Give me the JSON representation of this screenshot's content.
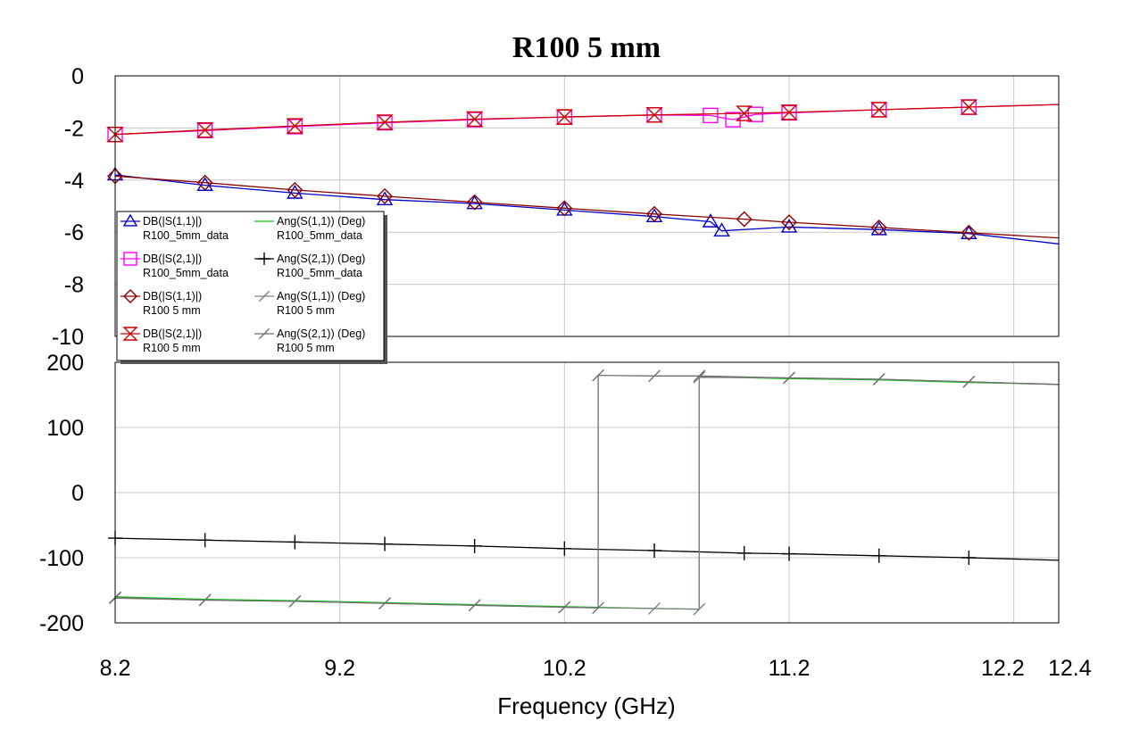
{
  "chart_data": {
    "title": "R100 5 mm",
    "xlabel": "Frequency (GHz)",
    "xlim": [
      8.2,
      12.4
    ],
    "x_ticks": [
      "8.2",
      "9.2",
      "10.2",
      "11.2",
      "12.2",
      "12.4"
    ],
    "panels": [
      {
        "type": "line",
        "ylim": [
          -10,
          0
        ],
        "y_ticks": [
          "0",
          "-2",
          "-4",
          "-6",
          "-8",
          "-10"
        ],
        "grid": true,
        "series": [
          {
            "name": "DB(|S(1,1)|) R100_5mm_data",
            "color": "#0000c8",
            "marker": "triangle",
            "x": [
              8.2,
              8.6,
              9.0,
              9.4,
              9.8,
              10.2,
              10.6,
              10.85,
              10.9,
              11.2,
              11.6,
              12.0,
              12.4
            ],
            "y": [
              -3.8,
              -4.2,
              -4.5,
              -4.75,
              -4.9,
              -5.15,
              -5.4,
              -5.6,
              -5.95,
              -5.8,
              -5.9,
              -6.05,
              -6.45
            ]
          },
          {
            "name": "DB(|S(2,1)|) R100_5mm_data",
            "color": "#ff00ff",
            "marker": "square",
            "x": [
              8.2,
              8.6,
              9.0,
              9.4,
              9.8,
              10.2,
              10.6,
              10.85,
              10.95,
              11.05,
              11.2,
              11.6,
              12.0,
              12.4
            ],
            "y": [
              -2.25,
              -2.1,
              -1.95,
              -1.8,
              -1.68,
              -1.58,
              -1.5,
              -1.52,
              -1.68,
              -1.48,
              -1.42,
              -1.3,
              -1.2,
              -1.1
            ]
          },
          {
            "name": "DB(|S(1,1)|) R100 5 mm",
            "color": "#8b0000",
            "marker": "diamond",
            "x": [
              8.2,
              8.6,
              9.0,
              9.4,
              9.8,
              10.2,
              10.6,
              11.0,
              11.2,
              11.6,
              12.0,
              12.4
            ],
            "y": [
              -3.85,
              -4.1,
              -4.38,
              -4.62,
              -4.85,
              -5.08,
              -5.3,
              -5.5,
              -5.62,
              -5.82,
              -6.02,
              -6.22
            ]
          },
          {
            "name": "DB(|S(2,1)|) R100 5 mm",
            "color": "#cc0000",
            "marker": "hourglass",
            "x": [
              8.2,
              8.6,
              9.0,
              9.4,
              9.8,
              10.2,
              10.6,
              11.0,
              11.2,
              11.6,
              12.0,
              12.4
            ],
            "y": [
              -2.25,
              -2.08,
              -1.92,
              -1.78,
              -1.66,
              -1.58,
              -1.5,
              -1.44,
              -1.4,
              -1.3,
              -1.2,
              -1.1
            ]
          }
        ]
      },
      {
        "type": "line",
        "ylim": [
          -200,
          200
        ],
        "y_ticks": [
          "200",
          "100",
          "0",
          "-100",
          "-200"
        ],
        "grid": true,
        "series": [
          {
            "name": "Ang(S(1,1)) (Deg) R100_5mm_data",
            "color": "#00cc00",
            "marker": "none",
            "x": [
              8.2,
              8.6,
              9.0,
              9.4,
              9.8,
              10.2,
              10.6,
              10.8,
              10.8,
              11.2,
              11.6,
              12.0,
              12.4
            ],
            "y": [
              -160,
              -164,
              -166,
              -169,
              -172,
              -175,
              -178,
              -179,
              178,
              175,
              173,
              169,
              166
            ]
          },
          {
            "name": "Ang(S(2,1)) (Deg) R100_5mm_data",
            "color": "#000000",
            "marker": "plus",
            "x": [
              8.2,
              8.6,
              9.0,
              9.4,
              9.8,
              10.2,
              10.6,
              11.0,
              11.2,
              11.6,
              12.0,
              12.4
            ],
            "y": [
              -70,
              -73,
              -76,
              -79,
              -82,
              -86,
              -89,
              -93,
              -94,
              -97,
              -100,
              -104
            ]
          },
          {
            "name": "Ang(S(1,1)) (Deg) R100 5 mm",
            "color": "#808080",
            "marker": "slash",
            "x": [
              8.2,
              8.6,
              9.0,
              9.4,
              9.8,
              10.2,
              10.6,
              10.8,
              10.8,
              11.2,
              11.6,
              12.0,
              12.4
            ],
            "y": [
              -162,
              -165,
              -167,
              -170,
              -173,
              -176,
              -178,
              -179,
              177,
              176,
              174,
              170,
              166
            ]
          },
          {
            "name": "Ang(S(2,1)) (Deg) R100 5 mm",
            "color": "#707070",
            "marker": "slash",
            "x": [
              8.2,
              8.6,
              9.0,
              9.4,
              9.8,
              10.2,
              10.35,
              10.35,
              10.6,
              10.8,
              11.2,
              11.6,
              12.0,
              12.4
            ],
            "y": [
              -161,
              -165,
              -167,
              -170,
              -173,
              -176,
              -177,
              180,
              179,
              179,
              176,
              174,
              170,
              166
            ]
          }
        ]
      }
    ],
    "legend": {
      "placement": "left-middle",
      "entries": [
        {
          "line1": "DB(|S(1,1)|)",
          "line2": "R100_5mm_data",
          "color": "#0000c8",
          "marker": "triangle"
        },
        {
          "line1": "Ang(S(1,1)) (Deg)",
          "line2": "R100_5mm_data",
          "color": "#00cc00",
          "marker": "none"
        },
        {
          "line1": "DB(|S(2,1)|)",
          "line2": "R100_5mm_data",
          "color": "#ff00ff",
          "marker": "square"
        },
        {
          "line1": "Ang(S(2,1)) (Deg)",
          "line2": "R100_5mm_data",
          "color": "#000000",
          "marker": "plus"
        },
        {
          "line1": "DB(|S(1,1)|)",
          "line2": "R100 5 mm",
          "color": "#8b0000",
          "marker": "diamond"
        },
        {
          "line1": "Ang(S(1,1)) (Deg)",
          "line2": "R100 5 mm",
          "color": "#808080",
          "marker": "slash"
        },
        {
          "line1": "DB(|S(2,1)|)",
          "line2": "R100 5 mm",
          "color": "#cc0000",
          "marker": "hourglass"
        },
        {
          "line1": "Ang(S(2,1)) (Deg)",
          "line2": "R100 5 mm",
          "color": "#707070",
          "marker": "slash"
        }
      ]
    }
  }
}
